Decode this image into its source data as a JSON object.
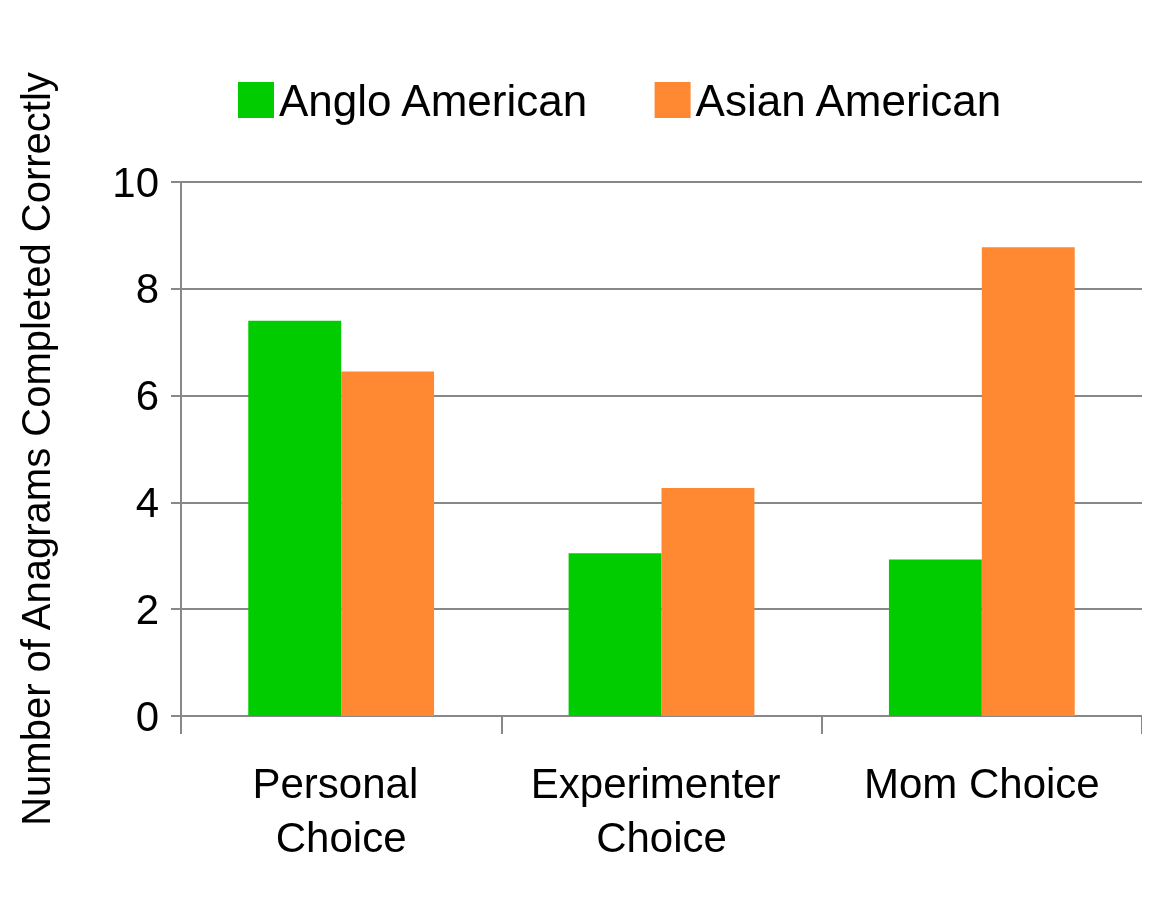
{
  "chart_data": {
    "type": "bar",
    "ylabel": "Number of Anagrams Completed Correctly",
    "categories": [
      "Personal Choice",
      "Experimenter Choice",
      "Mom Choice"
    ],
    "series": [
      {
        "name": "Anglo American",
        "color": "#00cc00",
        "values": [
          7.4,
          3.05,
          2.93
        ]
      },
      {
        "name": "Asian American",
        "color": "#ff8833",
        "values": [
          6.45,
          4.27,
          8.78
        ]
      }
    ],
    "ylim": [
      0,
      10
    ],
    "yticks": [
      0,
      2,
      4,
      6,
      8,
      10
    ],
    "grid": "y",
    "legend": "top"
  }
}
